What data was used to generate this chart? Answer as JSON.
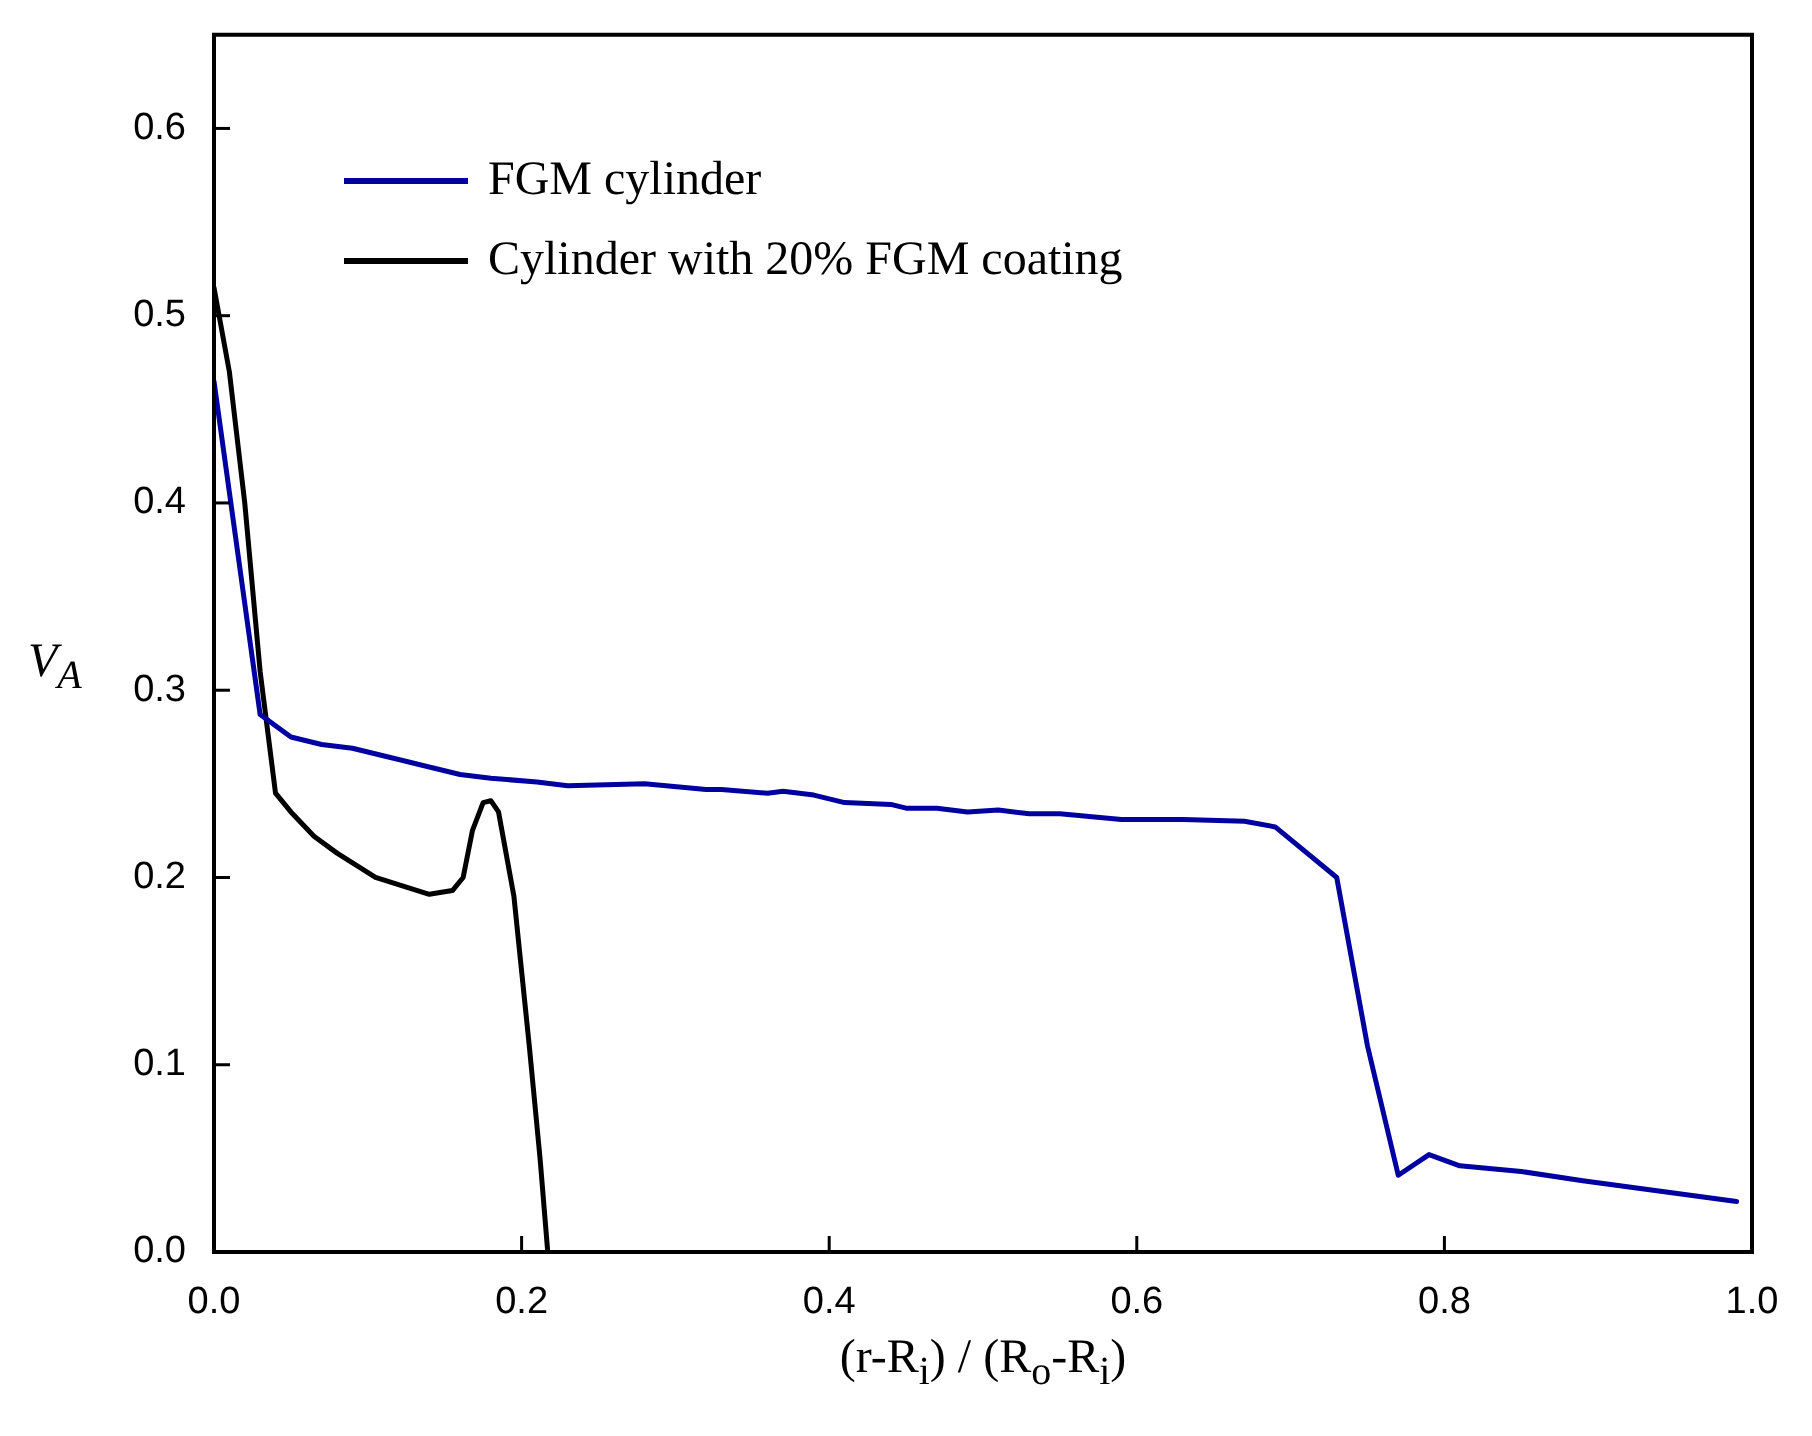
{
  "chart_data": {
    "type": "line",
    "xlabel": "(r-R$_{i}$) / (R$_{o}$-R$_{i}$)",
    "ylabel": "V$_{A}$",
    "xlim": [
      0,
      1
    ],
    "xticks": [
      {
        "value": 0,
        "label": "0.0"
      },
      0.2,
      0.4,
      0.6,
      0.8,
      {
        "value": 1,
        "label": "1.0"
      }
    ],
    "ylim": [
      0,
      0.65
    ],
    "yticks": [
      {
        "value": 0,
        "label": "0.0"
      },
      0.1,
      0.2,
      0.3,
      0.4,
      0.5,
      0.6
    ],
    "legend": "top left",
    "marker": "none",
    "line_style": "solid",
    "series": [
      {
        "name": "FGM cylinder",
        "color": "#0000a0",
        "x": [
          0,
          0.03,
          0.05,
          0.07,
          0.09,
          0.11,
          0.13,
          0.16,
          0.18,
          0.21,
          0.23,
          0.28,
          0.32,
          0.33,
          0.36,
          0.37,
          0.39,
          0.41,
          0.44,
          0.45,
          0.47,
          0.49,
          0.51,
          0.53,
          0.55,
          0.59,
          0.63,
          0.67,
          0.69,
          0.73,
          0.75,
          0.77,
          0.79,
          0.81,
          0.85,
          0.89,
          0.99
        ],
        "values": [
          0.465,
          0.287,
          0.275,
          0.271,
          0.269,
          0.265,
          0.261,
          0.255,
          0.253,
          0.251,
          0.249,
          0.25,
          0.247,
          0.247,
          0.245,
          0.246,
          0.244,
          0.24,
          0.239,
          0.237,
          0.237,
          0.235,
          0.236,
          0.234,
          0.234,
          0.231,
          0.231,
          0.23,
          0.227,
          0.2,
          0.11,
          0.041,
          0.052,
          0.046,
          0.043,
          0.038,
          0.027
        ]
      },
      {
        "name": "Cylinder with 20% FGM coating",
        "color": "#000000",
        "x": [
          0,
          0.01,
          0.02,
          0.03,
          0.04,
          0.05,
          0.065,
          0.08,
          0.105,
          0.14,
          0.155,
          0.162,
          0.168,
          0.175,
          0.18,
          0.185,
          0.195,
          0.205,
          0.212,
          0.217
        ],
        "values": [
          0.515,
          0.47,
          0.4,
          0.31,
          0.245,
          0.235,
          0.222,
          0.213,
          0.2,
          0.191,
          0.193,
          0.2,
          0.225,
          0.24,
          0.241,
          0.235,
          0.19,
          0.11,
          0.05,
          0
        ]
      }
    ]
  }
}
